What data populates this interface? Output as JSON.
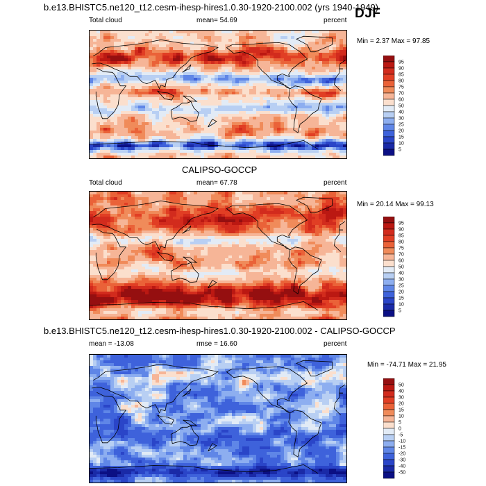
{
  "figure": {
    "title1": "b.e13.BHISTC5.ne120_t12.cesm-ihesp-hires1.0.30-1920-2100.002 (yrs 1940-1949)",
    "season": "DJF",
    "title2": "CALIPSO-GOCCP",
    "title3": "b.e13.BHISTC5.ne120_t12.cesm-ihesp-hires1.0.30-1920-2100.002 - CALIPSO-GOCCP"
  },
  "chart_data": [
    {
      "type": "heatmap",
      "panel": "model",
      "left_label": "Total cloud",
      "center_label": "mean=  54.69",
      "right_label": "percent",
      "minmax_label": "Min =   2.37 Max =  97.85",
      "mean": 54.69,
      "min": 2.37,
      "max": 97.85,
      "colorbar_levels": [
        "95",
        "90",
        "85",
        "80",
        "75",
        "70",
        "60",
        "50",
        "40",
        "30",
        "25",
        "20",
        "15",
        "10",
        "5"
      ],
      "colorbar_colors": [
        "#950f10",
        "#bb1812",
        "#d22b1d",
        "#e13e24",
        "#ea6238",
        "#f08b5a",
        "#f6b597",
        "#fbdfcd",
        "#e2ebf6",
        "#b8cff3",
        "#8daef0",
        "#5f86e7",
        "#3e62db",
        "#2a45c8",
        "#1a2aa7",
        "#0b0f84"
      ]
    },
    {
      "type": "heatmap",
      "panel": "observations",
      "left_label": "Total cloud",
      "center_label": "mean=  67.78",
      "right_label": "percent",
      "minmax_label": "Min =  20.14 Max =  99.13",
      "mean": 67.78,
      "min": 20.14,
      "max": 99.13,
      "colorbar_levels": [
        "95",
        "90",
        "85",
        "80",
        "75",
        "70",
        "60",
        "50",
        "40",
        "30",
        "25",
        "20",
        "15",
        "10",
        "5"
      ],
      "colorbar_colors": [
        "#950f10",
        "#bb1812",
        "#d22b1d",
        "#e13e24",
        "#ea6238",
        "#f08b5a",
        "#f6b597",
        "#fbdfcd",
        "#e2ebf6",
        "#b8cff3",
        "#8daef0",
        "#5f86e7",
        "#3e62db",
        "#2a45c8",
        "#1a2aa7",
        "#0b0f84"
      ]
    },
    {
      "type": "heatmap",
      "panel": "difference",
      "left_label": "mean = -13.08",
      "center_label": "rmse =  16.60",
      "right_label": "percent",
      "minmax_label": "Min = -74.71 Max =  21.95",
      "mean": -13.08,
      "rmse": 16.6,
      "min": -74.71,
      "max": 21.95,
      "colorbar_levels": [
        "50",
        "40",
        "30",
        "20",
        "15",
        "10",
        "5",
        "0",
        "-5",
        "-10",
        "-15",
        "-20",
        "-30",
        "-40",
        "-50"
      ],
      "colorbar_colors": [
        "#950f10",
        "#bb1812",
        "#d22b1d",
        "#e13e24",
        "#ea6238",
        "#f08b5a",
        "#f6b597",
        "#fbdfcd",
        "#e2ebf6",
        "#b8cff3",
        "#8daef0",
        "#5f86e7",
        "#3e62db",
        "#2a45c8",
        "#1a2aa7",
        "#0b0f84"
      ]
    }
  ]
}
